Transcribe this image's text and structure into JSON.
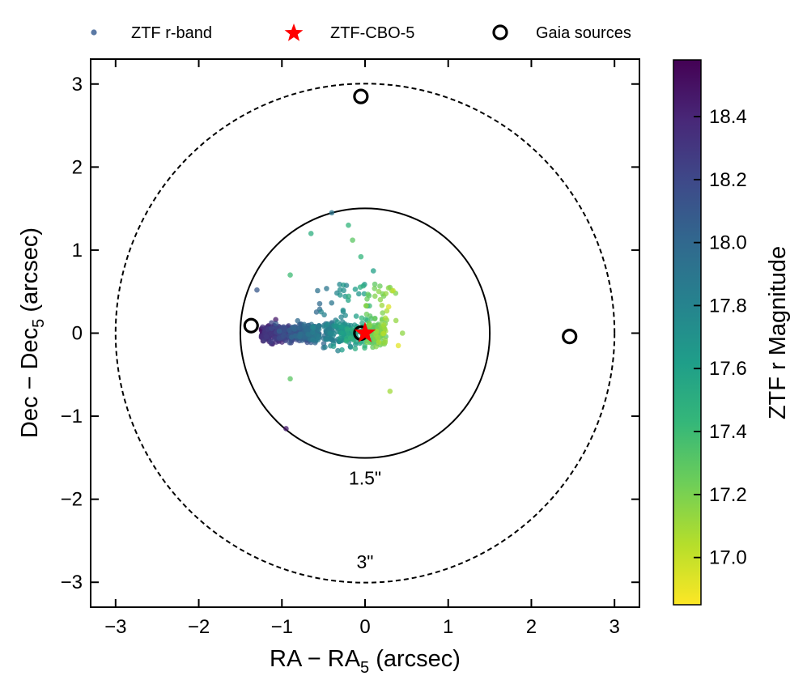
{
  "chart_data": {
    "type": "scatter",
    "title": "",
    "xlabel": "RA − RA",
    "xlabel_sub": "5",
    "xlabel_unit": " (arcsec)",
    "ylabel": "Dec − Dec",
    "ylabel_sub": "5",
    "ylabel_unit": " (arcsec)",
    "xlim": [
      -3.3,
      3.3
    ],
    "ylim": [
      -3.3,
      3.3
    ],
    "xticks": [
      -3,
      -2,
      -1,
      0,
      1,
      2,
      3
    ],
    "yticks": [
      -3,
      -2,
      -1,
      0,
      1,
      2,
      3
    ],
    "xtick_labels": [
      "−3",
      "−2",
      "−1",
      "0",
      "1",
      "2",
      "3"
    ],
    "ytick_labels": [
      "−3",
      "−2",
      "−1",
      "0",
      "1",
      "2",
      "3"
    ],
    "legend": {
      "placement": "top, outside plot",
      "entries": [
        {
          "label": "ZTF r-band",
          "marker": "dot",
          "color": "#5b79a5"
        },
        {
          "label": "ZTF-CBO-5",
          "marker": "star",
          "color": "#ff0000"
        },
        {
          "label": "Gaia sources",
          "marker": "open-circle",
          "color": "#000000"
        }
      ]
    },
    "circles": [
      {
        "radius": 1.5,
        "style": "solid",
        "label": "1.5\""
      },
      {
        "radius": 3.0,
        "style": "dashed",
        "label": "3\""
      }
    ],
    "target": {
      "name": "ZTF-CBO-5",
      "x": 0.0,
      "y": 0.0,
      "color": "#ff0000"
    },
    "gaia_sources": [
      {
        "x": -0.05,
        "y": 2.85
      },
      {
        "x": -1.37,
        "y": 0.09
      },
      {
        "x": 2.46,
        "y": -0.04
      },
      {
        "x": -0.05,
        "y": 0.0
      }
    ],
    "ztf_scatter": {
      "n_points": 700,
      "cluster_x_range": [
        -1.35,
        0.3
      ],
      "cluster_y_range": [
        -0.2,
        0.2
      ],
      "notable_points": [
        {
          "x": -0.4,
          "y": 1.45,
          "mag": 17.9
        },
        {
          "x": -0.65,
          "y": 1.2,
          "mag": 17.5
        },
        {
          "x": -0.2,
          "y": 1.3,
          "mag": 17.45
        },
        {
          "x": -0.15,
          "y": 1.12,
          "mag": 17.3
        },
        {
          "x": -0.05,
          "y": 0.92,
          "mag": 17.45
        },
        {
          "x": 0.1,
          "y": 0.75,
          "mag": 17.6
        },
        {
          "x": 0.3,
          "y": 0.55,
          "mag": 17.2
        },
        {
          "x": -0.9,
          "y": 0.7,
          "mag": 17.4
        },
        {
          "x": -1.3,
          "y": 0.52,
          "mag": 18.1
        },
        {
          "x": -0.95,
          "y": -1.15,
          "mag": 18.45
        },
        {
          "x": -0.9,
          "y": -0.55,
          "mag": 17.3
        },
        {
          "x": 0.3,
          "y": -0.7,
          "mag": 17.1
        },
        {
          "x": 0.4,
          "y": -0.15,
          "mag": 16.92
        },
        {
          "x": 0.45,
          "y": 0.0,
          "mag": 17.15
        }
      ]
    },
    "colorbar": {
      "label": "ZTF r Magnitude",
      "range": [
        16.85,
        18.58
      ],
      "ticks": [
        17.0,
        17.2,
        17.4,
        17.6,
        17.8,
        18.0,
        18.2,
        18.4
      ],
      "tick_labels": [
        "17.0",
        "17.2",
        "17.4",
        "17.6",
        "17.8",
        "18.0",
        "18.2",
        "18.4"
      ],
      "colormap": "viridis_r",
      "stops": [
        "#fde725",
        "#b5de2b",
        "#6ece58",
        "#35b779",
        "#1f9e89",
        "#26828e",
        "#31688e",
        "#3e4989",
        "#482878",
        "#440154"
      ]
    }
  }
}
